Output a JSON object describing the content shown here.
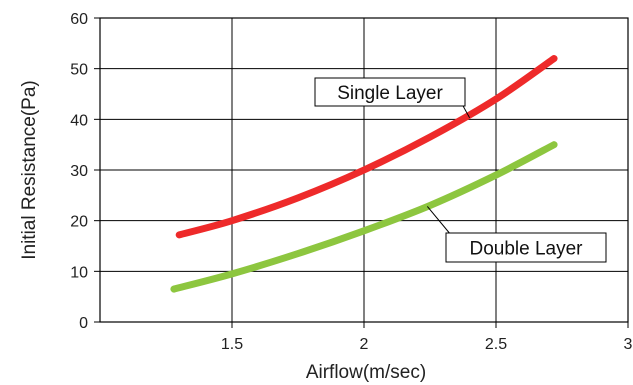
{
  "chart_data": {
    "type": "line",
    "xlabel": "Airflow(m/sec)",
    "ylabel": "Initial Resistance(Pa)",
    "xlim": [
      1,
      3
    ],
    "ylim": [
      0,
      60
    ],
    "x_ticks": [
      1.5,
      2,
      2.5,
      3
    ],
    "x_tick_labels": [
      "1.5",
      "2",
      "2.5",
      "3"
    ],
    "y_ticks": [
      0,
      10,
      20,
      30,
      40,
      50,
      60
    ],
    "y_tick_labels": [
      "0",
      "10",
      "20",
      "30",
      "40",
      "50",
      "60"
    ],
    "grid": true,
    "series": [
      {
        "name": "Single Layer",
        "color": "#ee2a2a",
        "x": [
          1.3,
          1.5,
          1.75,
          2.0,
          2.25,
          2.5,
          2.72
        ],
        "y": [
          17.2,
          20,
          24.5,
          30,
          36.5,
          44,
          52
        ]
      },
      {
        "name": "Double Layer",
        "color": "#8dc63f",
        "x": [
          1.28,
          1.5,
          1.75,
          2.0,
          2.25,
          2.5,
          2.72
        ],
        "y": [
          6.5,
          9.5,
          13.5,
          18,
          23,
          29,
          35
        ]
      }
    ]
  }
}
